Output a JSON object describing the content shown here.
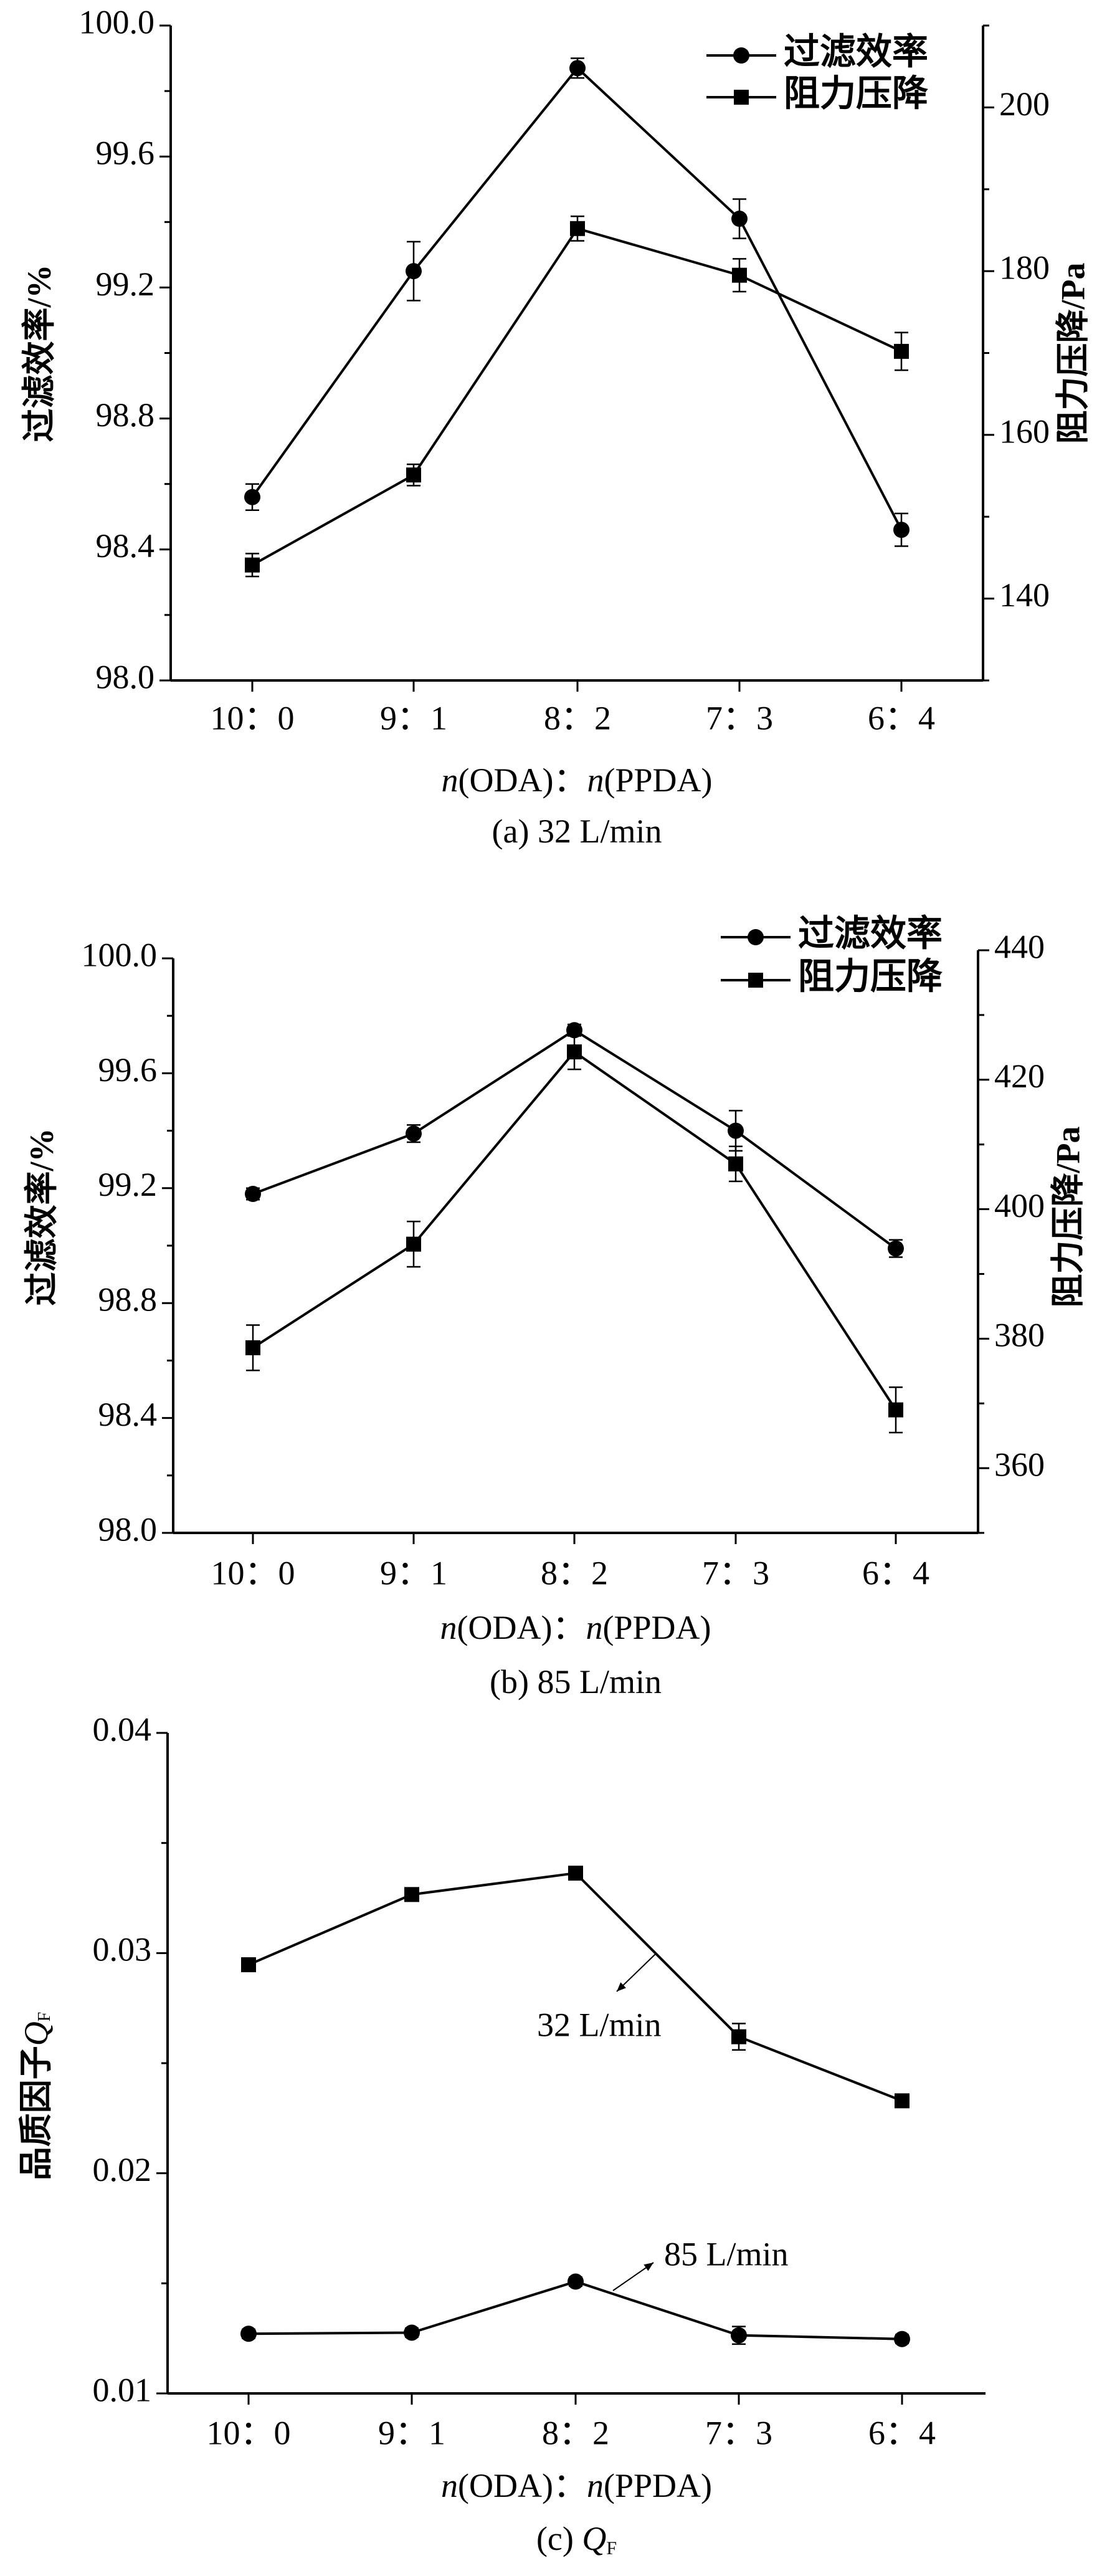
{
  "chart_data": [
    {
      "type": "line",
      "caption": "(a) 32 L/min",
      "xlabel": "n(ODA)：n(PPDA)",
      "ylabel": "过滤效率/%",
      "ylabel_right": "阻力压降/Pa",
      "categories": [
        "10：0",
        "9：1",
        "8：2",
        "7：3",
        "6：4"
      ],
      "ylim": [
        98.0,
        100.0
      ],
      "yticks": [
        "98.0",
        "98.4",
        "98.8",
        "99.2",
        "99.6",
        "100.0"
      ],
      "ylim_right": [
        130,
        210
      ],
      "yticks_right": [
        "140",
        "160",
        "180",
        "200"
      ],
      "legend": [
        "过滤效率",
        "阻力压降"
      ],
      "legend_position": "top-right",
      "series": [
        {
          "name": "过滤效率",
          "axis": "left",
          "marker": "circle",
          "values": [
            98.56,
            99.25,
            99.87,
            99.41,
            98.46
          ],
          "errors": [
            0.04,
            0.09,
            0.03,
            0.06,
            0.05
          ]
        },
        {
          "name": "阻力压降",
          "axis": "right",
          "marker": "square",
          "values": [
            144.1,
            155.1,
            185.2,
            179.5,
            170.2
          ],
          "errors": [
            1.4,
            1.3,
            1.5,
            2.0,
            2.3
          ]
        }
      ]
    },
    {
      "type": "line",
      "caption": "(b) 85 L/min",
      "xlabel": "n(ODA)：n(PPDA)",
      "ylabel": "过滤效率/%",
      "ylabel_right": "阻力压降/Pa",
      "categories": [
        "10：0",
        "9：1",
        "8：2",
        "7：3",
        "6：4"
      ],
      "ylim": [
        98.0,
        100.0
      ],
      "yticks": [
        "98.0",
        "98.4",
        "98.8",
        "99.2",
        "99.6",
        "100.0"
      ],
      "ylim_right": [
        350,
        440
      ],
      "yticks_right": [
        "360",
        "380",
        "400",
        "420",
        "440"
      ],
      "legend": [
        "过滤效率",
        "阻力压降"
      ],
      "legend_position": "top-right",
      "series": [
        {
          "name": "过滤效率",
          "axis": "left",
          "marker": "circle",
          "values": [
            99.18,
            99.39,
            99.75,
            99.4,
            98.99
          ],
          "errors": [
            0.02,
            0.03,
            0.02,
            0.07,
            0.03
          ]
        },
        {
          "name": "阻力压降",
          "axis": "right",
          "marker": "square",
          "values": [
            378.6,
            394.6,
            424.3,
            407.0,
            369.0
          ],
          "errors": [
            3.5,
            3.5,
            2.7,
            2.7,
            3.5
          ]
        }
      ]
    },
    {
      "type": "line",
      "caption": "(c) ",
      "caption_symbol": "Q",
      "caption_sub": "F",
      "xlabel": "n(ODA)：n(PPDA)",
      "ylabel": "品质因子",
      "ylabel_symbol": "Q",
      "ylabel_sub": "F",
      "categories": [
        "10：0",
        "9：1",
        "8：2",
        "7：3",
        "6：4"
      ],
      "ylim": [
        0.01,
        0.04
      ],
      "yticks": [
        "0.01",
        "0.02",
        "0.03",
        "0.04"
      ],
      "annotations": [
        "32 L/min",
        "85 L/min"
      ],
      "series": [
        {
          "name": "32 L/min",
          "axis": "left",
          "marker": "square",
          "values": [
            0.02947,
            0.03266,
            0.03363,
            0.0262,
            0.02329
          ],
          "errors": [
            0.0003,
            0.0002,
            0.0002,
            0.0006,
            0.0002
          ]
        },
        {
          "name": "85 L/min",
          "axis": "left",
          "marker": "circle",
          "values": [
            0.01271,
            0.01276,
            0.01508,
            0.01264,
            0.01247
          ],
          "errors": [
            0.0002,
            0.0002,
            0.0002,
            0.0004,
            0.0002
          ]
        }
      ]
    }
  ]
}
